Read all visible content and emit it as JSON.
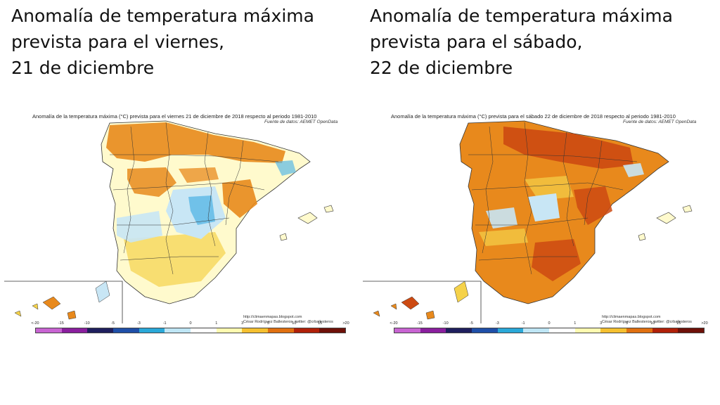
{
  "panels": [
    {
      "headline": [
        "Anomalía de temperatura máxima",
        "prevista para el viernes,",
        "21 de diciembre"
      ],
      "map_title": "Anomalía de la temperatura máxima (°C) prevista para el viernes 21 de diciembre de 2018 respecto al periodo 1981-2010",
      "source": "Fuente de datos: AEMET OpenData",
      "credit_url": "http://climaenmapas.blogspot.com",
      "credit_author": "César Rodríguez Ballesteros, twitter: @crballesteros"
    },
    {
      "headline": [
        "Anomalía de temperatura máxima",
        "prevista para el sábado,",
        "22 de diciembre"
      ],
      "map_title": "Anomalía de la temperatura máxima (°C) prevista para el sábado 22 de diciembre de 2018 respecto al periodo 1981-2010",
      "source": "Fuente de datos: AEMET OpenData",
      "credit_url": "http://climaenmapas.blogspot.com",
      "credit_author": "César Rodríguez Ballesteros, twitter: @crballesteros"
    }
  ],
  "legend": {
    "ticks": [
      "<-20",
      "-15",
      "-10",
      "-5",
      "-3",
      "-1",
      "0",
      "1",
      "3",
      "5",
      "10",
      "15",
      ">20"
    ],
    "colors": [
      "#c864d2",
      "#8a1f9e",
      "#1f1f5e",
      "#1f4fa8",
      "#2aa8d8",
      "#bfe6f5",
      "#ffffff",
      "#fffbb0",
      "#f5c030",
      "#e07010",
      "#b02008",
      "#6e1008"
    ]
  },
  "colors": {
    "near_zero": "#fffacd",
    "slight_warm": "#f5d24a",
    "warm": "#e8891c",
    "hot": "#cc4a12",
    "cool": "#c8e6f5",
    "cold": "#5ab8e6",
    "border": "#333333"
  }
}
